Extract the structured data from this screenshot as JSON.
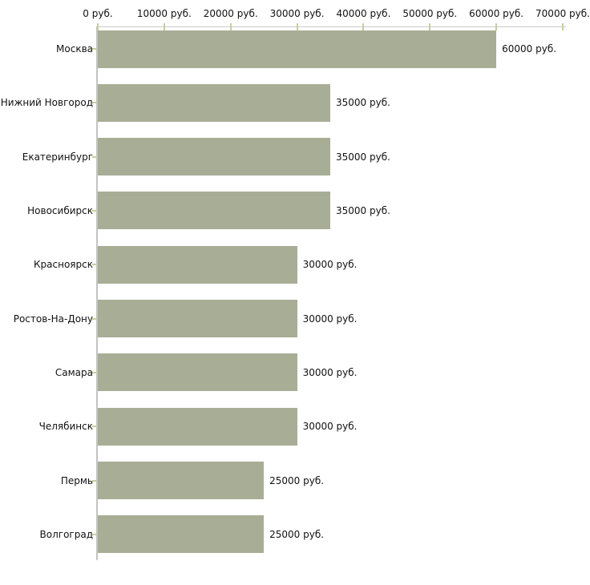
{
  "page": {
    "background": "#ffffff"
  },
  "chart_data": {
    "type": "bar",
    "orientation": "horizontal",
    "title": "",
    "xlabel": "",
    "ylabel": "",
    "unit": "руб.",
    "xlim": [
      0,
      70000
    ],
    "x_tick_step": 10000,
    "x_tick_values": [
      0,
      10000,
      20000,
      30000,
      40000,
      50000,
      60000,
      70000
    ],
    "x_tick_labels": [
      "0 руб.",
      "10000 руб.",
      "20000 руб.",
      "30000 руб.",
      "40000 руб.",
      "50000 руб.",
      "60000 руб.",
      "70000 руб."
    ],
    "categories": [
      "Москва",
      "Нижний Новгород",
      "Екатеринбург",
      "Новосибирск",
      "Красноярск",
      "Ростов-На-Дону",
      "Самара",
      "Челябинск",
      "Пермь",
      "Волгоград"
    ],
    "values": [
      60000,
      35000,
      35000,
      35000,
      30000,
      30000,
      30000,
      30000,
      25000,
      25000
    ],
    "value_labels": [
      "60000 руб.",
      "35000 руб.",
      "35000 руб.",
      "35000 руб.",
      "30000 руб.",
      "30000 руб.",
      "30000 руб.",
      "30000 руб.",
      "25000 руб.",
      "25000 руб."
    ],
    "grid": false,
    "legend": "none",
    "colors": {
      "bar": "#a8ae96",
      "axis_line": "#c3c3c3",
      "tick_mark": "#cbcb9e",
      "text": "#111111"
    }
  }
}
